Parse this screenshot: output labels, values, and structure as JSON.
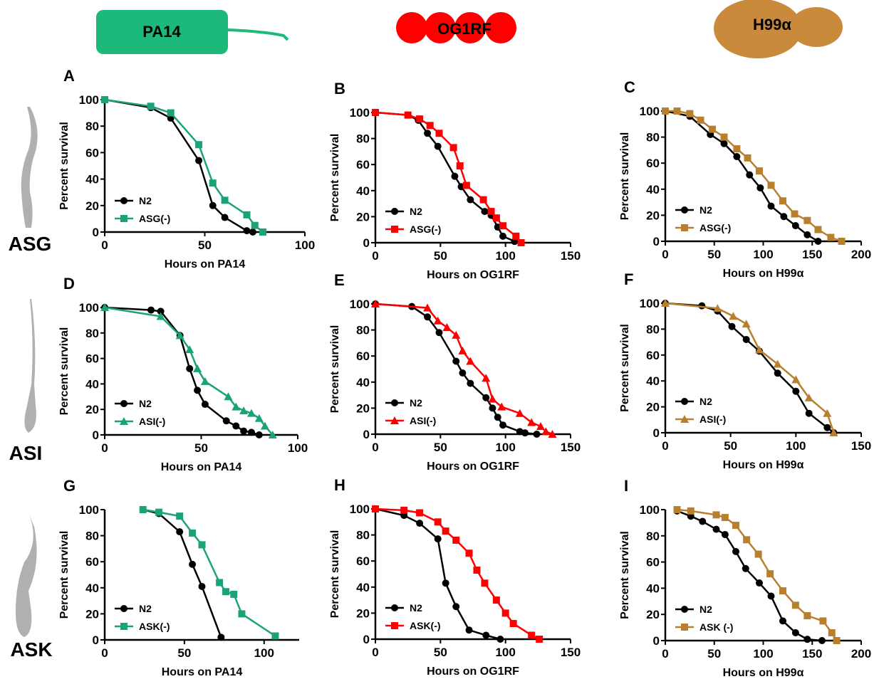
{
  "header": {
    "organisms": [
      "PA14",
      "OG1RF",
      "H99α"
    ],
    "neurons": [
      "ASG",
      "ASI",
      "ASK"
    ]
  },
  "chart_data": [
    {
      "type": "line",
      "label": "A",
      "xlabel": "Hours on PA14",
      "ylabel": "Percent survival",
      "xlim": [
        0,
        100
      ],
      "xticks": [
        0,
        50,
        100
      ],
      "ylim": [
        0,
        100
      ],
      "yticks": [
        0,
        20,
        40,
        60,
        80,
        100
      ],
      "legend": "lower left",
      "series": [
        {
          "name": "N2",
          "color": "#000000",
          "marker": "circle",
          "x": [
            0,
            23,
            33,
            47,
            54,
            60,
            71,
            74
          ],
          "values": [
            100,
            94,
            86,
            54,
            20,
            11,
            1,
            0
          ]
        },
        {
          "name": "ASG(-)",
          "color": "#1aa37a",
          "marker": "square",
          "x": [
            0,
            23,
            33,
            47,
            54,
            60,
            71,
            75,
            79
          ],
          "values": [
            100,
            95,
            90,
            66,
            37,
            24,
            13,
            5,
            0
          ]
        }
      ]
    },
    {
      "type": "line",
      "label": "B",
      "xlabel": "Hours on OG1RF",
      "ylabel": "Percent survival",
      "xlim": [
        0,
        150
      ],
      "xticks": [
        0,
        50,
        100,
        150
      ],
      "ylim": [
        0,
        100
      ],
      "yticks": [
        0,
        20,
        40,
        60,
        80,
        100
      ],
      "legend": "lower left",
      "series": [
        {
          "name": "N2",
          "color": "#000000",
          "marker": "circle",
          "x": [
            0,
            25,
            33,
            40,
            48,
            61,
            66,
            73,
            84,
            89,
            94,
            98,
            107
          ],
          "values": [
            100,
            98,
            94,
            84,
            74,
            51,
            43,
            33,
            24,
            21,
            12,
            5,
            1
          ]
        },
        {
          "name": "ASG(-)",
          "color": "#ff0000",
          "marker": "square",
          "x": [
            0,
            25,
            34,
            42,
            49,
            60,
            65,
            70,
            83,
            89,
            93,
            98,
            108,
            112
          ],
          "values": [
            100,
            98,
            95,
            90,
            84,
            73,
            59,
            44,
            33,
            24,
            19,
            13,
            5,
            0
          ]
        }
      ]
    },
    {
      "type": "line",
      "label": "C",
      "xlabel": "Hours on H99α",
      "ylabel": "Percent survival",
      "xlim": [
        0,
        200
      ],
      "xticks": [
        0,
        50,
        100,
        150,
        200
      ],
      "ylim": [
        0,
        100
      ],
      "yticks": [
        0,
        20,
        40,
        60,
        80,
        100
      ],
      "legend": "lower left",
      "series": [
        {
          "name": "N2",
          "color": "#000000",
          "marker": "circle",
          "x": [
            0,
            25,
            46,
            60,
            73,
            86,
            97,
            108,
            121,
            133,
            145,
            156
          ],
          "values": [
            100,
            96,
            82,
            75,
            65,
            51,
            41,
            27,
            19,
            12,
            5,
            0
          ]
        },
        {
          "name": "ASG(-)",
          "color": "#b8802e",
          "marker": "square",
          "x": [
            0,
            12,
            25,
            36,
            48,
            60,
            73,
            84,
            96,
            108,
            120,
            132,
            145,
            156,
            169,
            180
          ],
          "values": [
            100,
            100,
            98,
            93,
            86,
            80,
            71,
            64,
            54,
            43,
            31,
            21,
            16,
            9,
            3,
            0
          ]
        }
      ]
    },
    {
      "type": "line",
      "label": "D",
      "xlabel": "Hours on PA14",
      "ylabel": "Percent survival",
      "xlim": [
        0,
        100
      ],
      "xticks": [
        0,
        50,
        100
      ],
      "ylim": [
        0,
        100
      ],
      "yticks": [
        0,
        20,
        40,
        60,
        80,
        100
      ],
      "legend": "lower left",
      "series": [
        {
          "name": "N2",
          "color": "#000000",
          "marker": "circle",
          "x": [
            0,
            24,
            29,
            39,
            44,
            48,
            52,
            63,
            68,
            72,
            76,
            80
          ],
          "values": [
            100,
            98,
            97,
            78,
            52,
            35,
            24,
            11,
            7,
            3,
            2,
            0
          ]
        },
        {
          "name": "ASI(-)",
          "color": "#1aa37a",
          "marker": "triangle",
          "x": [
            0,
            29,
            39,
            44,
            48,
            52,
            64,
            68,
            72,
            76,
            80,
            83,
            87
          ],
          "values": [
            100,
            93,
            78,
            67,
            52,
            42,
            30,
            22,
            19,
            17,
            13,
            7,
            0
          ]
        }
      ]
    },
    {
      "type": "line",
      "label": "E",
      "xlabel": "Hours on OG1RF",
      "ylabel": "Percent survival",
      "xlim": [
        0,
        150
      ],
      "xticks": [
        0,
        50,
        100,
        150
      ],
      "ylim": [
        0,
        100
      ],
      "yticks": [
        0,
        20,
        40,
        60,
        80,
        100
      ],
      "legend": "lower left",
      "series": [
        {
          "name": "N2",
          "color": "#000000",
          "marker": "circle",
          "x": [
            0,
            28,
            40,
            49,
            62,
            67,
            73,
            85,
            90,
            94,
            98,
            111,
            115,
            124
          ],
          "values": [
            100,
            98,
            90,
            78,
            56,
            47,
            39,
            28,
            20,
            13,
            7,
            2,
            1,
            0
          ]
        },
        {
          "name": "ASI(-)",
          "color": "#ff0000",
          "marker": "triangle",
          "x": [
            0,
            40,
            48,
            55,
            62,
            67,
            73,
            85,
            90,
            97,
            111,
            120,
            127,
            131,
            136
          ],
          "values": [
            100,
            97,
            87,
            82,
            76,
            64,
            56,
            43,
            27,
            21,
            16,
            9,
            6,
            2,
            0
          ]
        }
      ]
    },
    {
      "type": "line",
      "label": "F",
      "xlabel": "Hours on H99α",
      "ylabel": "Percent survival",
      "xlim": [
        0,
        150
      ],
      "xticks": [
        0,
        50,
        100,
        150
      ],
      "ylim": [
        0,
        100
      ],
      "yticks": [
        0,
        20,
        40,
        60,
        80,
        100
      ],
      "legend": "lower left",
      "series": [
        {
          "name": "N2",
          "color": "#000000",
          "marker": "circle",
          "x": [
            0,
            28,
            40,
            51,
            62,
            72,
            86,
            100,
            110,
            124,
            129
          ],
          "values": [
            100,
            98,
            94,
            82,
            72,
            63,
            46,
            32,
            15,
            4,
            0
          ]
        },
        {
          "name": "ASI(-)",
          "color": "#b8802e",
          "marker": "triangle",
          "x": [
            0,
            40,
            52,
            62,
            72,
            86,
            100,
            110,
            124,
            129
          ],
          "values": [
            100,
            96,
            90,
            84,
            64,
            53,
            41,
            27,
            15,
            0
          ]
        }
      ]
    },
    {
      "type": "line",
      "label": "G",
      "xlabel": "Hours on PA14",
      "ylabel": "Percent survival",
      "xlim": [
        0,
        122
      ],
      "xticks": [
        0,
        50,
        100
      ],
      "ylim": [
        0,
        100
      ],
      "yticks": [
        0,
        20,
        40,
        60,
        80,
        100
      ],
      "legend": "lower left",
      "series": [
        {
          "name": "N2",
          "color": "#000000",
          "marker": "circle",
          "x": [
            24,
            34,
            47,
            55,
            61,
            73
          ],
          "values": [
            100,
            97,
            83,
            58,
            41,
            2
          ]
        },
        {
          "name": "ASK(-)",
          "color": "#1aa37a",
          "marker": "square",
          "x": [
            24,
            34,
            47,
            55,
            61,
            72,
            76,
            81,
            86,
            107
          ],
          "values": [
            100,
            98,
            95,
            82,
            73,
            44,
            37,
            35,
            20,
            3
          ]
        }
      ]
    },
    {
      "type": "line",
      "label": "H",
      "xlabel": "Hours on OG1RF",
      "ylabel": "Percent survival",
      "xlim": [
        0,
        150
      ],
      "xticks": [
        0,
        50,
        100,
        150
      ],
      "ylim": [
        0,
        100
      ],
      "yticks": [
        0,
        20,
        40,
        60,
        80,
        100
      ],
      "legend": "lower left",
      "series": [
        {
          "name": "N2",
          "color": "#000000",
          "marker": "circle",
          "x": [
            0,
            22,
            34,
            48,
            54,
            62,
            72,
            85,
            96
          ],
          "values": [
            100,
            95,
            89,
            77,
            43,
            25,
            7,
            3,
            0
          ]
        },
        {
          "name": "ASK(-)",
          "color": "#ff0000",
          "marker": "square",
          "x": [
            0,
            22,
            34,
            48,
            54,
            62,
            72,
            78,
            84,
            93,
            100,
            106,
            120,
            126
          ],
          "values": [
            100,
            99,
            97,
            90,
            83,
            76,
            66,
            53,
            43,
            30,
            20,
            12,
            3,
            0
          ]
        }
      ]
    },
    {
      "type": "line",
      "label": "I",
      "xlabel": "Hours on H99α",
      "ylabel": "Percent survival",
      "xlim": [
        0,
        200
      ],
      "xticks": [
        0,
        50,
        100,
        150,
        200
      ],
      "ylim": [
        0,
        100
      ],
      "yticks": [
        0,
        20,
        40,
        60,
        80,
        100
      ],
      "legend": "lower left",
      "series": [
        {
          "name": "N2",
          "color": "#000000",
          "marker": "circle",
          "x": [
            12,
            26,
            38,
            52,
            61,
            72,
            82,
            96,
            108,
            120,
            133,
            145,
            160
          ],
          "values": [
            99,
            95,
            91,
            85,
            81,
            68,
            55,
            44,
            34,
            15,
            6,
            1,
            0
          ]
        },
        {
          "name": "ASK (-)",
          "color": "#b8802e",
          "marker": "square",
          "x": [
            12,
            26,
            52,
            61,
            72,
            83,
            95,
            107,
            120,
            133,
            145,
            161,
            170,
            175
          ],
          "values": [
            100,
            99,
            96,
            94,
            88,
            77,
            66,
            51,
            38,
            27,
            19,
            15,
            6,
            0
          ]
        }
      ]
    }
  ]
}
